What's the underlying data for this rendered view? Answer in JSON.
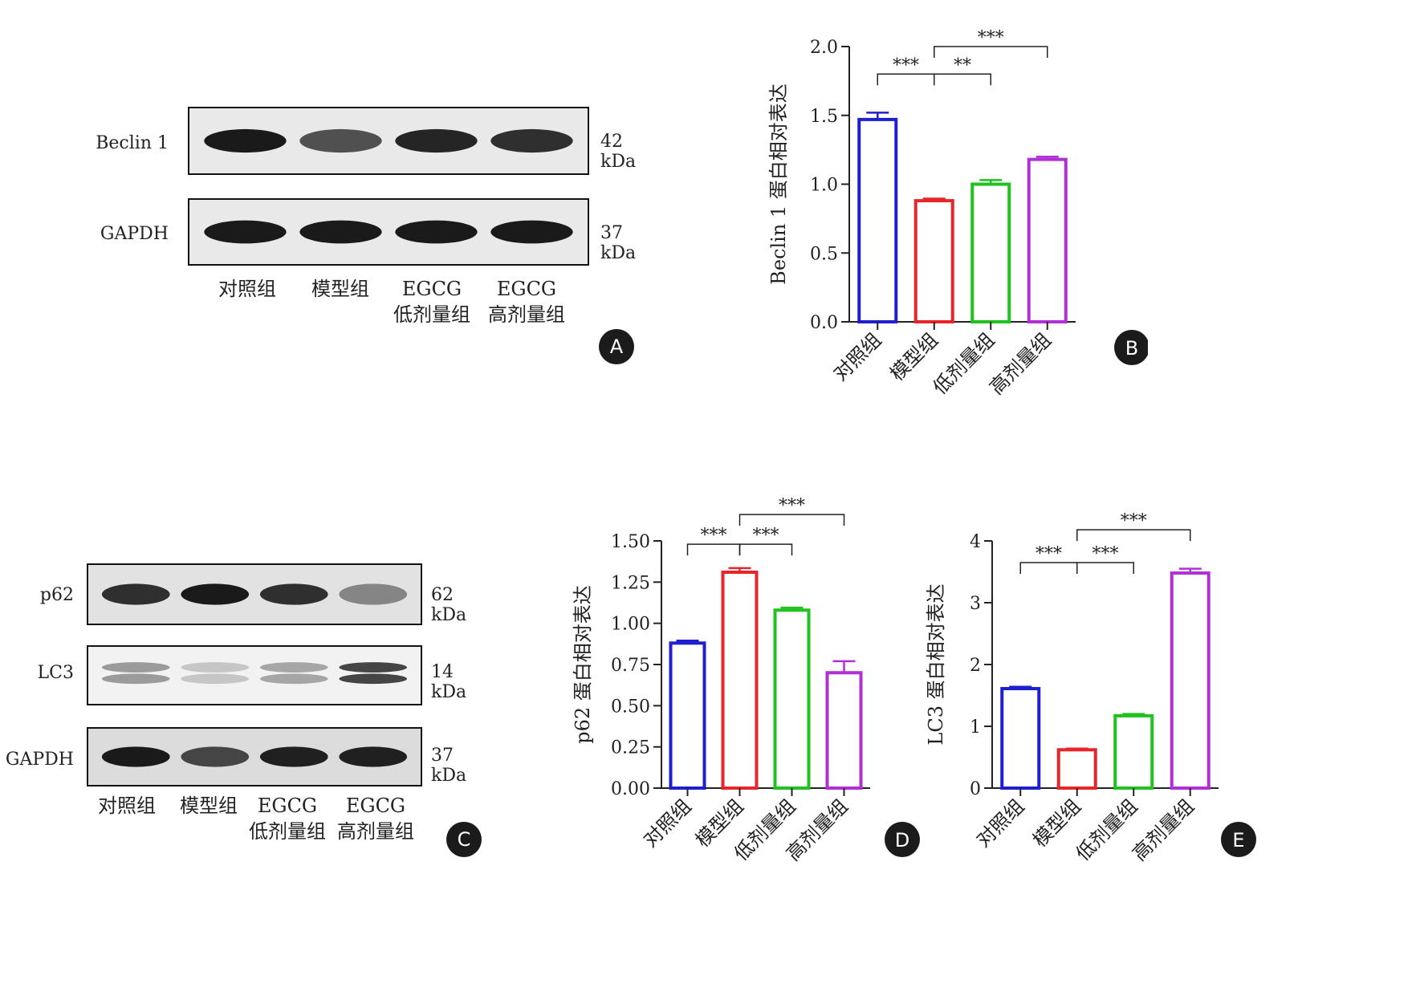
{
  "panels": {
    "A": {
      "badge": "A",
      "rows": [
        {
          "label": "Beclin 1",
          "kda": "42 kDa",
          "intensity": [
            0.95,
            0.7,
            0.9,
            0.85
          ]
        },
        {
          "label": "GAPDH",
          "kda": "37 kDa",
          "intensity": [
            0.95,
            0.95,
            0.95,
            0.95
          ]
        }
      ],
      "lanes": [
        "对照组",
        "模型组",
        "EGCG\n低剂量组",
        "EGCG\n高剂量组"
      ]
    },
    "C": {
      "badge": "C",
      "rows": [
        {
          "label": "p62",
          "kda": "62 kDa",
          "intensity": [
            0.85,
            0.95,
            0.85,
            0.45
          ]
        },
        {
          "label": "LC3",
          "kda": "14 kDa",
          "intensity": [
            0.35,
            0.15,
            0.3,
            0.75
          ]
        },
        {
          "label": "GAPDH",
          "kda": "37 kDa",
          "intensity": [
            0.95,
            0.75,
            0.92,
            0.92
          ]
        }
      ],
      "lanes": [
        "对照组",
        "模型组",
        "EGCG\n低剂量组",
        "EGCG\n高剂量组"
      ]
    }
  },
  "chart_data": [
    {
      "id": "B",
      "badge": "B",
      "type": "bar",
      "categories": [
        "对照组",
        "模型组",
        "低剂量组",
        "高剂量组"
      ],
      "values": [
        1.47,
        0.88,
        1.0,
        1.18
      ],
      "errors": [
        0.05,
        0.015,
        0.03,
        0.02
      ],
      "colors": [
        "#1f1fd0",
        "#e8262a",
        "#1fc21f",
        "#b030d6"
      ],
      "ylabel": "Beclin 1 蛋白相对表达",
      "ylim": [
        0,
        2.0
      ],
      "yticks": [
        0,
        0.5,
        1.0,
        1.5,
        2.0
      ],
      "ytick_labels": [
        "0.0",
        "0.5",
        "1.0",
        "1.5",
        "2.0"
      ],
      "significance": [
        {
          "from": 0,
          "to": 1,
          "label": "***",
          "level": 1.8
        },
        {
          "from": 1,
          "to": 2,
          "label": "**",
          "level": 1.8
        },
        {
          "from": 1,
          "to": 3,
          "label": "***",
          "level": 2.0
        }
      ]
    },
    {
      "id": "D",
      "badge": "D",
      "type": "bar",
      "categories": [
        "对照组",
        "模型组",
        "低剂量组",
        "高剂量组"
      ],
      "values": [
        0.88,
        1.31,
        1.08,
        0.7
      ],
      "errors": [
        0.015,
        0.025,
        0.015,
        0.07
      ],
      "colors": [
        "#1f1fd0",
        "#e8262a",
        "#1fc21f",
        "#b030d6"
      ],
      "ylabel": "p62 蛋白相对表达",
      "ylim": [
        0,
        1.5
      ],
      "yticks": [
        0,
        0.25,
        0.5,
        0.75,
        1.0,
        1.25,
        1.5
      ],
      "ytick_labels": [
        "0.00",
        "0.25",
        "0.50",
        "0.75",
        "1.00",
        "1.25",
        "1.50"
      ],
      "significance": [
        {
          "from": 0,
          "to": 1,
          "label": "***",
          "level": 1.48
        },
        {
          "from": 1,
          "to": 2,
          "label": "***",
          "level": 1.48
        },
        {
          "from": 1,
          "to": 3,
          "label": "***",
          "level": 1.66
        }
      ]
    },
    {
      "id": "E",
      "badge": "E",
      "type": "bar",
      "categories": [
        "对照组",
        "模型组",
        "低剂量组",
        "高剂量组"
      ],
      "values": [
        1.61,
        0.62,
        1.17,
        3.48
      ],
      "errors": [
        0.03,
        0.02,
        0.03,
        0.07
      ],
      "colors": [
        "#1f1fd0",
        "#e8262a",
        "#1fc21f",
        "#b030d6"
      ],
      "ylabel": "LC3 蛋白相对表达",
      "ylim": [
        0,
        4
      ],
      "yticks": [
        0,
        1,
        2,
        3,
        4
      ],
      "ytick_labels": [
        "0",
        "1",
        "2",
        "3",
        "4"
      ],
      "significance": [
        {
          "from": 0,
          "to": 1,
          "label": "***",
          "level": 3.65
        },
        {
          "from": 1,
          "to": 2,
          "label": "***",
          "level": 3.65
        },
        {
          "from": 1,
          "to": 3,
          "label": "***",
          "level": 4.18
        }
      ]
    }
  ]
}
